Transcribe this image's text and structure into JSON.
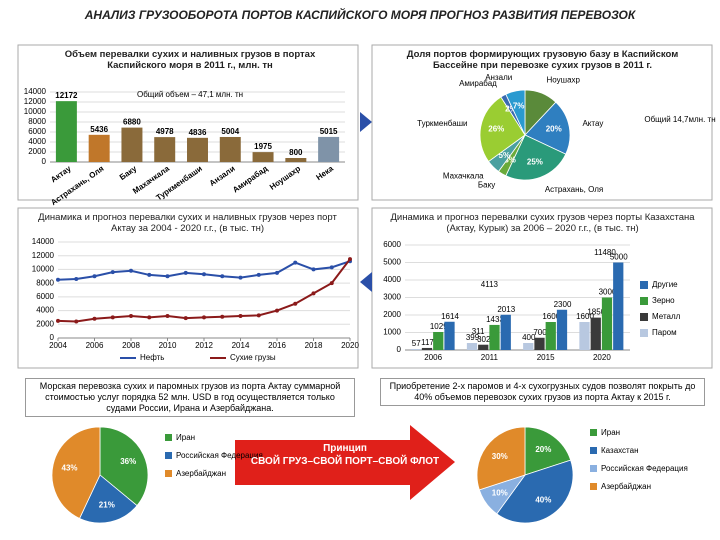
{
  "title": "АНАЛИЗ ГРУЗООБОРОТА ПОРТОВ КАСПИЙСКОГО МОРЯ ПРОГНОЗ РАЗВИТИЯ ПЕРЕВОЗОК",
  "chart_data": [
    {
      "type": "bar",
      "title": "Объем перевалки сухих и наливных грузов в портах Каспийского моря в 2011 г., млн. тн",
      "annotation": "Общий объем – 47,1 млн. тн",
      "categories": [
        "Актау",
        "Астрахань, Оля",
        "Баку",
        "Махачкала",
        "Туркменбаши",
        "Анзали",
        "Амирабад",
        "Ноушахр",
        "Нека"
      ],
      "values": [
        12172,
        5436,
        6880,
        4978,
        4836,
        5004,
        1975,
        800,
        5015
      ],
      "colors": [
        "#3a9a3a",
        "#c0772a",
        "#8a6a3a",
        "#8a6a3a",
        "#8a6a3a",
        "#8a6a3a",
        "#8a6a3a",
        "#8a6a3a",
        "#7f93a8"
      ],
      "ylim": [
        0,
        14000
      ],
      "yticks": [
        0,
        2000,
        4000,
        6000,
        8000,
        10000,
        12000,
        14000
      ],
      "grid": true
    },
    {
      "type": "pie",
      "title": "Доля портов формирующих грузовую базу в Каспийском Бассейне при перевозке сухих грузов в 2011 г.",
      "annotation": "Общий 14,7млн. тн",
      "categories": [
        "Ноушахр",
        "Актау",
        "Астрахань, Оля",
        "Баку",
        "Махачкала",
        "Туркменбаши",
        "Амирабад",
        "Анзали"
      ],
      "values": [
        12,
        20,
        25,
        3,
        5,
        26,
        2,
        7
      ],
      "value_labels": [
        null,
        "20%",
        "25%",
        "3%",
        "5%",
        "26%",
        "2%",
        "7%"
      ],
      "colors": [
        "#5a8a3a",
        "#2f7fc0",
        "#2a9a7a",
        "#6aaa3a",
        "#4aa0a0",
        "#9acd32",
        "#3a6ab0",
        "#2a9ad0"
      ]
    },
    {
      "type": "line",
      "title": "Динамика и прогноз перевалки сухих  и наливных грузов через порт Актау за 2004 - 2020 г.г., (в тыс. тн)",
      "x": [
        2004,
        2005,
        2006,
        2007,
        2008,
        2009,
        2010,
        2011,
        2012,
        2013,
        2014,
        2015,
        2016,
        2017,
        2018,
        2019,
        2020
      ],
      "series": [
        {
          "name": "Нефть",
          "color": "#2a4fa8",
          "values": [
            8500,
            8600,
            9000,
            9600,
            9800,
            9200,
            9000,
            9500,
            9300,
            9000,
            8800,
            9200,
            9500,
            11000,
            10000,
            10300,
            11200
          ]
        },
        {
          "name": "Сухие грузы",
          "color": "#8b1a1a",
          "values": [
            2500,
            2400,
            2800,
            3000,
            3200,
            3000,
            3200,
            2900,
            3000,
            3100,
            3200,
            3300,
            4000,
            5000,
            6500,
            8000,
            11500
          ]
        }
      ],
      "xlim": [
        2004,
        2020
      ],
      "xticks": [
        2004,
        2006,
        2008,
        2010,
        2012,
        2014,
        2016,
        2018,
        2020
      ],
      "ylim": [
        0,
        14000
      ],
      "yticks": [
        0,
        2000,
        4000,
        6000,
        8000,
        10000,
        12000,
        14000
      ],
      "grid": true
    },
    {
      "type": "groupbar",
      "title": "Динамика и прогноз перевалки сухих грузов через порты Казахстана (Актау, Курык) за 2006 – 2020 г.г., (в тыс. тн)",
      "categories": [
        "2006",
        "2011",
        "2015",
        "2020"
      ],
      "series": [
        {
          "name": "Паром",
          "color": "#b8c8e0",
          "values": [
            57,
            399,
            400,
            1600
          ]
        },
        {
          "name": "Металл",
          "color": "#3a3a3a",
          "values": [
            117,
            302,
            700,
            1850
          ]
        },
        {
          "name": "Зерно",
          "color": "#3a9a3a",
          "values": [
            1029,
            1433,
            1600,
            3000
          ]
        },
        {
          "name": "Другие",
          "color": "#2a6ab0",
          "values": [
            1614,
            2013,
            2300,
            5000
          ]
        }
      ],
      "annotations": [
        "11480",
        "4113",
        "311"
      ],
      "ylim": [
        0,
        6000
      ],
      "yticks": [
        0,
        1000,
        2000,
        3000,
        4000,
        5000,
        6000
      ],
      "grid": true
    },
    {
      "type": "pie",
      "categories": [
        "Иран",
        "Российская Федерация",
        "Азербайджан"
      ],
      "values": [
        36,
        21,
        43
      ],
      "value_labels": [
        "36%",
        "21%",
        "43%"
      ],
      "colors": [
        "#3a9a3a",
        "#2a6ab0",
        "#e08a2a"
      ]
    },
    {
      "type": "pie",
      "categories": [
        "Иран",
        "Казахстан",
        "Российская Федерация",
        "Азербайджан"
      ],
      "values": [
        20,
        40,
        10,
        30
      ],
      "value_labels": [
        "20%",
        "40%",
        "10%",
        "30%"
      ],
      "colors": [
        "#3a9a3a",
        "#2a6ab0",
        "#8ab0e0",
        "#e08a2a"
      ]
    }
  ],
  "notes": {
    "left": "Морская перевозка сухих и паромных грузов из порта Актау суммарной стоимостью услуг порядка 52 млн. USD в год осуществляется только судами России, Ирана и Азербайджана.",
    "right": "Приобретение 2-х паромов и 4-х сухогрузных судов позволят покрыть до 40% объемов перевозок сухих грузов из порта Актау к 2015 г."
  },
  "arrow": {
    "line1": "Принцип",
    "line2": "СВОЙ ГРУЗ–СВОЙ ПОРТ–СВОЙ ФЛОТ"
  }
}
